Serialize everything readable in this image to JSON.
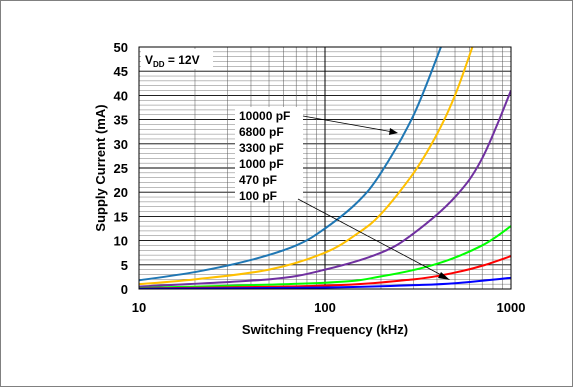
{
  "chart_data": {
    "type": "line",
    "xscale": "log",
    "xlabel": "Switching Frequency (kHz)",
    "ylabel": "Supply Current (mA)",
    "xlim": [
      10,
      1000
    ],
    "ylim": [
      0,
      50
    ],
    "x_ticks": [
      10,
      100,
      1000
    ],
    "y_ticks": [
      0,
      5,
      10,
      15,
      20,
      25,
      30,
      35,
      40,
      45,
      50
    ],
    "grid": true,
    "annotation": {
      "main": "V",
      "sub": "DD",
      "rest": " = 12V"
    },
    "legend_labels": [
      "10000 pF",
      "6800 pF",
      "3300 pF",
      "1000 pF",
      "470 pF",
      "100 pF"
    ],
    "series": [
      {
        "name": "10000 pF",
        "color": "#1f77b4",
        "x": [
          10,
          20,
          40,
          70,
          100,
          150,
          200,
          300,
          420
        ],
        "y": [
          1.8,
          3.5,
          6,
          9,
          12.5,
          18,
          24,
          36,
          50
        ]
      },
      {
        "name": "6800 pF",
        "color": "#ffc000",
        "x": [
          10,
          20,
          50,
          100,
          150,
          200,
          300,
          400,
          500,
          620
        ],
        "y": [
          1.0,
          2.0,
          4.0,
          7.5,
          11.5,
          15.5,
          24,
          32,
          40,
          50
        ]
      },
      {
        "name": "3300 pF",
        "color": "#7030a0",
        "x": [
          10,
          50,
          100,
          200,
          300,
          500,
          700,
          1000
        ],
        "y": [
          0.5,
          2.0,
          4.0,
          7.5,
          11.5,
          19,
          27,
          41
        ]
      },
      {
        "name": "1000 pF",
        "color": "#00ff00",
        "x": [
          10,
          100,
          200,
          400,
          700,
          1000
        ],
        "y": [
          0.2,
          1.3,
          2.6,
          5.2,
          9.0,
          13
        ]
      },
      {
        "name": "470 pF",
        "color": "#ff0000",
        "x": [
          10,
          100,
          300,
          500,
          700,
          1000
        ],
        "y": [
          0.1,
          0.7,
          2.0,
          3.4,
          4.8,
          6.8
        ]
      },
      {
        "name": "100 pF",
        "color": "#0000ff",
        "x": [
          10,
          100,
          300,
          500,
          1000
        ],
        "y": [
          0.05,
          0.3,
          0.8,
          1.2,
          2.3
        ]
      }
    ]
  }
}
